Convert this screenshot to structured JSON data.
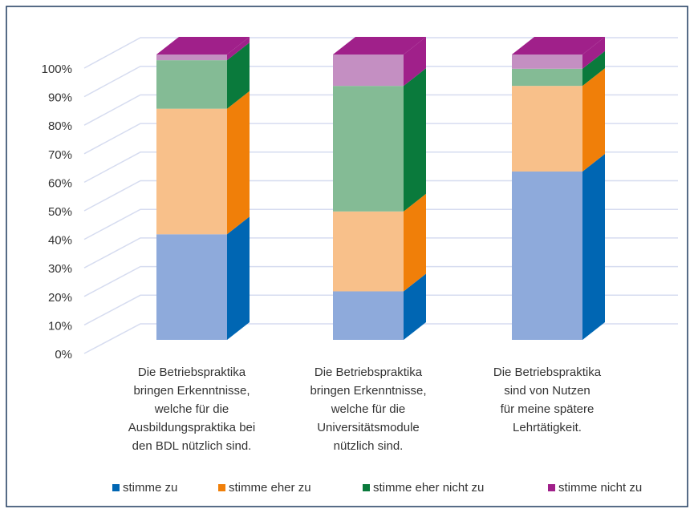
{
  "chart_data": {
    "type": "bar3d_stacked",
    "categories": [
      "Die Betriebspraktika\nbringen Erkenntnisse,\nwelche für die\nAusbildungspraktika bei\nden BDL nützlich sind.",
      "Die Betriebspraktika\nbringen Erkenntnisse,\nwelche für die\nUniversitätsmodule\nnützlich sind.",
      "Die Betriebspraktika\nsind von Nutzen\nfür meine spätere\nLehrtätigkeit."
    ],
    "series": [
      {
        "name": "stimme zu",
        "color": "#0066b3",
        "front": "#8eaadb",
        "values": [
          37,
          17,
          59
        ]
      },
      {
        "name": "stimme eher zu",
        "color": "#f07f09",
        "front": "#f8c08a",
        "values": [
          44,
          28,
          30
        ]
      },
      {
        "name": "stimme eher nicht zu",
        "color": "#0a7a3c",
        "front": "#84bb95",
        "values": [
          17,
          44,
          6
        ]
      },
      {
        "name": "stimme nicht zu",
        "color": "#a0208a",
        "front": "#c48fc2",
        "values": [
          2,
          11,
          5
        ]
      }
    ],
    "ylim": [
      0,
      100
    ],
    "yticks": [
      {
        "value": 0,
        "label": "0%"
      },
      {
        "value": 10,
        "label": "10%"
      },
      {
        "value": 20,
        "label": "20%"
      },
      {
        "value": 30,
        "label": "30%"
      },
      {
        "value": 40,
        "label": "40%"
      },
      {
        "value": 50,
        "label": "50%"
      },
      {
        "value": 60,
        "label": "60%"
      },
      {
        "value": 70,
        "label": "70%"
      },
      {
        "value": 80,
        "label": "80%"
      },
      {
        "value": 90,
        "label": "90%"
      },
      {
        "value": 100,
        "label": "100%"
      }
    ],
    "grid": true,
    "legend": "bottom"
  }
}
